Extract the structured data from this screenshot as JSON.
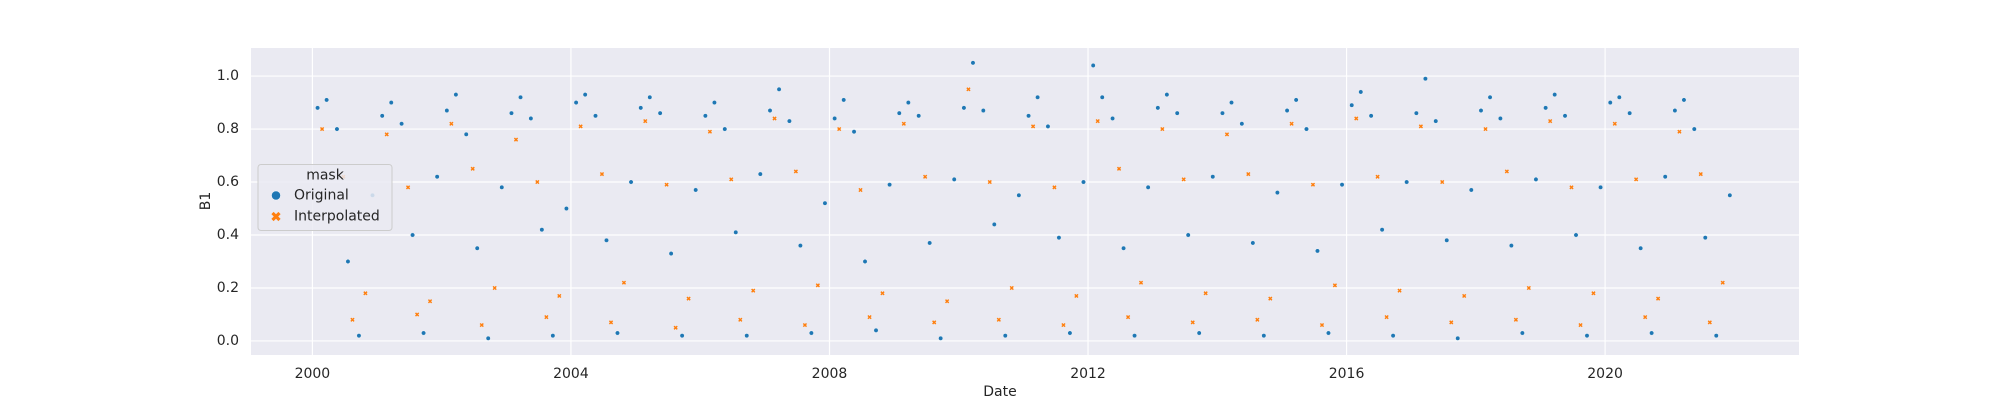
{
  "chart_data": {
    "type": "scatter",
    "xlabel": "Date",
    "ylabel": "B1",
    "xlim": [
      1999.05,
      2023.0
    ],
    "ylim": [
      -0.053,
      1.106
    ],
    "xticks": [
      2000,
      2004,
      2008,
      2012,
      2016,
      2020
    ],
    "yticks": [
      {
        "value": 0,
        "label": "0.0"
      },
      0.2,
      0.4,
      0.6,
      0.8,
      {
        "value": 1,
        "label": "1.0"
      }
    ],
    "grid": true,
    "background": "#eaeaf2",
    "legend_title": "mask",
    "legend_position": "center left",
    "series": [
      {
        "name": "Original",
        "color": "#1f77b4",
        "marker": "circle",
        "x": [
          2000.08,
          2000.22,
          2000.38,
          2000.55,
          2000.72,
          2000.93,
          2001.08,
          2001.22,
          2001.38,
          2001.55,
          2001.72,
          2001.93,
          2002.08,
          2002.22,
          2002.38,
          2002.55,
          2002.72,
          2002.93,
          2003.08,
          2003.22,
          2003.38,
          2003.55,
          2003.72,
          2003.93,
          2004.08,
          2004.22,
          2004.38,
          2004.55,
          2004.72,
          2004.93,
          2005.08,
          2005.22,
          2005.38,
          2005.55,
          2005.72,
          2005.93,
          2006.08,
          2006.22,
          2006.38,
          2006.55,
          2006.72,
          2006.93,
          2007.08,
          2007.22,
          2007.38,
          2007.55,
          2007.72,
          2007.93,
          2008.08,
          2008.22,
          2008.38,
          2008.55,
          2008.72,
          2008.93,
          2009.08,
          2009.22,
          2009.38,
          2009.55,
          2009.72,
          2009.93,
          2010.08,
          2010.22,
          2010.38,
          2010.55,
          2010.72,
          2010.93,
          2011.08,
          2011.22,
          2011.38,
          2011.55,
          2011.72,
          2011.93,
          2012.08,
          2012.22,
          2012.38,
          2012.55,
          2012.72,
          2012.93,
          2013.08,
          2013.22,
          2013.38,
          2013.55,
          2013.72,
          2013.93,
          2014.08,
          2014.22,
          2014.38,
          2014.55,
          2014.72,
          2014.93,
          2015.08,
          2015.22,
          2015.38,
          2015.55,
          2015.72,
          2015.93,
          2016.08,
          2016.22,
          2016.38,
          2016.55,
          2016.72,
          2016.93,
          2017.08,
          2017.22,
          2017.38,
          2017.55,
          2017.72,
          2017.93,
          2018.08,
          2018.22,
          2018.38,
          2018.55,
          2018.72,
          2018.93,
          2019.08,
          2019.22,
          2019.38,
          2019.55,
          2019.72,
          2019.93,
          2020.08,
          2020.22,
          2020.38,
          2020.55,
          2020.72,
          2020.93,
          2021.08,
          2021.22,
          2021.38,
          2021.55,
          2021.72,
          2021.93
        ],
        "values": [
          0.88,
          0.91,
          0.8,
          0.3,
          0.02,
          0.55,
          0.85,
          0.9,
          0.82,
          0.4,
          0.03,
          0.62,
          0.87,
          0.93,
          0.78,
          0.35,
          0.01,
          0.58,
          0.86,
          0.92,
          0.84,
          0.42,
          0.02,
          0.5,
          0.9,
          0.93,
          0.85,
          0.38,
          0.03,
          0.6,
          0.88,
          0.92,
          0.86,
          0.33,
          0.02,
          0.57,
          0.85,
          0.9,
          0.8,
          0.41,
          0.02,
          0.63,
          0.87,
          0.95,
          0.83,
          0.36,
          0.03,
          0.52,
          0.84,
          0.91,
          0.79,
          0.3,
          0.04,
          0.59,
          0.86,
          0.9,
          0.85,
          0.37,
          0.01,
          0.61,
          0.88,
          1.05,
          0.87,
          0.44,
          0.02,
          0.55,
          0.85,
          0.92,
          0.81,
          0.39,
          0.03,
          0.6,
          1.04,
          0.92,
          0.84,
          0.35,
          0.02,
          0.58,
          0.88,
          0.93,
          0.86,
          0.4,
          0.03,
          0.62,
          0.86,
          0.9,
          0.82,
          0.37,
          0.02,
          0.56,
          0.87,
          0.91,
          0.8,
          0.34,
          0.03,
          0.59,
          0.89,
          0.94,
          0.85,
          0.42,
          0.02,
          0.6,
          0.86,
          0.99,
          0.83,
          0.38,
          0.01,
          0.57,
          0.87,
          0.92,
          0.84,
          0.36,
          0.03,
          0.61,
          0.88,
          0.93,
          0.85,
          0.4,
          0.02,
          0.58,
          0.9,
          0.92,
          0.86,
          0.35,
          0.03,
          0.62,
          0.87,
          0.91,
          0.8,
          0.39,
          0.02,
          0.55
        ]
      },
      {
        "name": "Interpolated",
        "color": "#ff7f0e",
        "marker": "x",
        "x": [
          2000.15,
          2000.48,
          2000.62,
          2000.82,
          2001.15,
          2001.48,
          2001.62,
          2001.82,
          2002.15,
          2002.48,
          2002.62,
          2002.82,
          2003.15,
          2003.48,
          2003.62,
          2003.82,
          2004.15,
          2004.48,
          2004.62,
          2004.82,
          2005.15,
          2005.48,
          2005.62,
          2005.82,
          2006.15,
          2006.48,
          2006.62,
          2006.82,
          2007.15,
          2007.48,
          2007.62,
          2007.82,
          2008.15,
          2008.48,
          2008.62,
          2008.82,
          2009.15,
          2009.48,
          2009.62,
          2009.82,
          2010.15,
          2010.48,
          2010.62,
          2010.82,
          2011.15,
          2011.48,
          2011.62,
          2011.82,
          2012.15,
          2012.48,
          2012.62,
          2012.82,
          2013.15,
          2013.48,
          2013.62,
          2013.82,
          2014.15,
          2014.48,
          2014.62,
          2014.82,
          2015.15,
          2015.48,
          2015.62,
          2015.82,
          2016.15,
          2016.48,
          2016.62,
          2016.82,
          2017.15,
          2017.48,
          2017.62,
          2017.82,
          2018.15,
          2018.48,
          2018.62,
          2018.82,
          2019.15,
          2019.48,
          2019.62,
          2019.82,
          2020.15,
          2020.48,
          2020.62,
          2020.82,
          2021.15,
          2021.48,
          2021.62,
          2021.82
        ],
        "values": [
          0.8,
          0.62,
          0.08,
          0.18,
          0.78,
          0.58,
          0.1,
          0.15,
          0.82,
          0.65,
          0.06,
          0.2,
          0.76,
          0.6,
          0.09,
          0.17,
          0.81,
          0.63,
          0.07,
          0.22,
          0.83,
          0.59,
          0.05,
          0.16,
          0.79,
          0.61,
          0.08,
          0.19,
          0.84,
          0.64,
          0.06,
          0.21,
          0.8,
          0.57,
          0.09,
          0.18,
          0.82,
          0.62,
          0.07,
          0.15,
          0.95,
          0.6,
          0.08,
          0.2,
          0.81,
          0.58,
          0.06,
          0.17,
          0.83,
          0.65,
          0.09,
          0.22,
          0.8,
          0.61,
          0.07,
          0.18,
          0.78,
          0.63,
          0.08,
          0.16,
          0.82,
          0.59,
          0.06,
          0.21,
          0.84,
          0.62,
          0.09,
          0.19,
          0.81,
          0.6,
          0.07,
          0.17,
          0.8,
          0.64,
          0.08,
          0.2,
          0.83,
          0.58,
          0.06,
          0.18,
          0.82,
          0.61,
          0.09,
          0.16,
          0.79,
          0.63,
          0.07,
          0.22
        ]
      }
    ]
  }
}
